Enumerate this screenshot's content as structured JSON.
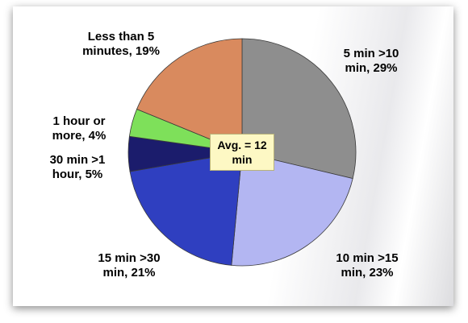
{
  "chart_data": {
    "type": "pie",
    "categories": [
      "5 min >10 min, 29%",
      "10 min >15 min, 23%",
      "15 min >30 min, 21%",
      "30 min >1 hour, 5%",
      "1 hour or more, 4%",
      "Less than 5 minutes, 19%"
    ],
    "values": [
      29,
      23,
      21,
      5,
      4,
      19
    ],
    "colors": [
      "#8e8e8e",
      "#b3b6f2",
      "#2f3fc0",
      "#1b1c6c",
      "#7ee05a",
      "#d98a5e"
    ],
    "annotation": "Avg. = 12 min"
  }
}
